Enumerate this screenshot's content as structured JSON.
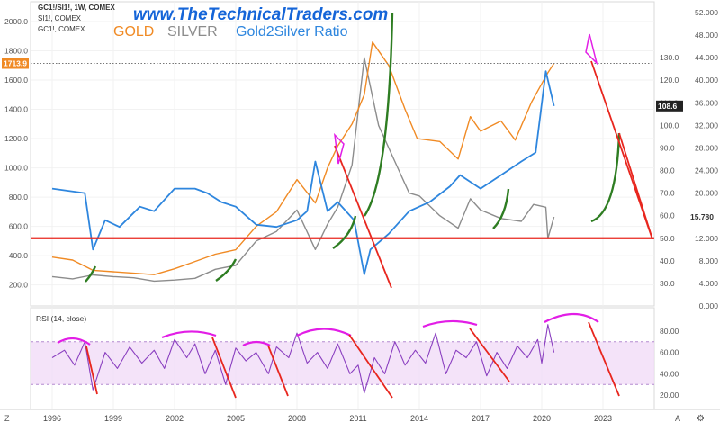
{
  "header": {
    "symbol_line": "GC1!/SI1!, 1W, COMEX",
    "line2": "SI1!, COMEX",
    "line3": "GC1!, COMEX",
    "site": "www.TheTechnicalTraders.com",
    "gold_label": "GOLD",
    "silver_label": "SILVER",
    "ratio_label": "Gold2Silver Ratio"
  },
  "colors": {
    "gold": "#f08a24",
    "silver": "#8c8c8c",
    "ratio": "#2e86de",
    "support": "#e8261e",
    "arc_green": "#2e7d22",
    "rsi": "#8a3fc0",
    "rsi_band": "#f1dcf7",
    "arc_magenta": "#e21ee6",
    "price_badge": "#f08a24",
    "ratio_badge": "#222222"
  },
  "badges": {
    "gold_price": "1713.9",
    "ratio_value": "108.6",
    "silver_value": "15.780"
  },
  "corner": {
    "left": "Z",
    "right": "A",
    "gear": "gear-icon"
  },
  "chart_data": [
    {
      "type": "line",
      "x_ticks": [
        "1996",
        "1999",
        "2002",
        "2005",
        "2008",
        "2011",
        "2014",
        "2017",
        "2020",
        "2023"
      ],
      "y_axis_gold": {
        "ticks": [
          "200.0",
          "400.0",
          "600.0",
          "800.0",
          "1000.0",
          "1200.0",
          "1400.0",
          "1600.0",
          "1800.0",
          "2000.0"
        ],
        "ylim": [
          130,
          2000
        ]
      },
      "y_axis_ratio": {
        "ticks": [
          "30.0",
          "40.0",
          "50.0",
          "60.0",
          "70.0",
          "80.0",
          "90.0",
          "100.0",
          "110.0",
          "120.0",
          "130.0"
        ]
      },
      "y_axis_silver": {
        "ticks": [
          "0.000",
          "4.000",
          "8.000",
          "12.000",
          "16.000",
          "20.000",
          "24.000",
          "28.000",
          "32.000",
          "36.000",
          "40.000",
          "44.000",
          "48.000",
          "52.000"
        ],
        "ylim": [
          0,
          52
        ]
      },
      "series": [
        {
          "name": "GOLD",
          "x": [
            1996,
            1997,
            1998,
            1999,
            2000,
            2001,
            2002,
            2003,
            2004,
            2005,
            2006,
            2007,
            2008,
            2008.9,
            2009.5,
            2010,
            2010.7,
            2011.3,
            2011.7,
            2012.5,
            2013.3,
            2013.9,
            2015,
            2015.9,
            2016.5,
            2017,
            2018,
            2018.7,
            2019.5,
            2019.9,
            2020.3,
            2020.6
          ],
          "values": [
            390,
            370,
            300,
            290,
            280,
            270,
            310,
            360,
            410,
            440,
            600,
            700,
            920,
            760,
            1000,
            1150,
            1300,
            1500,
            1860,
            1700,
            1400,
            1200,
            1180,
            1060,
            1350,
            1250,
            1320,
            1190,
            1450,
            1550,
            1650,
            1714
          ]
        },
        {
          "name": "SILVER",
          "x": [
            1996,
            1997,
            1998,
            1999,
            2000,
            2001,
            2002,
            2003,
            2004,
            2005,
            2006,
            2007,
            2008,
            2008.9,
            2009.5,
            2010,
            2010.7,
            2011.3,
            2012,
            2013,
            2013.5,
            2014,
            2015,
            2015.9,
            2016.5,
            2017,
            2018,
            2019,
            2019.6,
            2020.2,
            2020.3,
            2020.6
          ],
          "values": [
            5.2,
            4.8,
            5.5,
            5.2,
            5.0,
            4.4,
            4.6,
            4.9,
            6.5,
            7.2,
            11.5,
            13.2,
            17.0,
            10.0,
            14.5,
            17.5,
            25.0,
            44.0,
            32.0,
            24.0,
            20.0,
            19.5,
            16.0,
            13.8,
            19.0,
            17.0,
            15.5,
            15.0,
            18.0,
            17.5,
            12.0,
            15.78
          ]
        },
        {
          "name": "Gold2Silver Ratio",
          "x": [
            1996,
            1996.8,
            1997.6,
            1998,
            1998.6,
            1999.3,
            2000.3,
            2001,
            2002,
            2003,
            2003.6,
            2004.3,
            2005,
            2006,
            2007,
            2008,
            2008.5,
            2008.9,
            2009.5,
            2010,
            2010.8,
            2011.3,
            2011.6,
            2012.5,
            2013.5,
            2014.5,
            2015.5,
            2016,
            2017,
            2018,
            2019,
            2019.7,
            2020.2,
            2020.6
          ],
          "values": [
            72,
            71,
            70,
            45,
            58,
            55,
            64,
            62,
            72,
            72,
            70,
            66,
            64,
            56,
            55,
            58,
            62,
            84,
            62,
            66,
            58,
            34,
            45,
            52,
            62,
            66,
            73,
            78,
            72,
            78,
            84,
            88,
            124,
            108.6
          ]
        }
      ],
      "annotations": {
        "support_level_silver": 12.0,
        "price_marker_gold": 1713.9
      }
    },
    {
      "type": "line",
      "title": "RSI (14, close)",
      "y_ticks": [
        "20.00",
        "40.00",
        "60.00",
        "80.00"
      ],
      "ylim": [
        10,
        95
      ],
      "band": [
        30,
        70
      ],
      "series": [
        {
          "name": "RSI",
          "x": [
            1996,
            1996.6,
            1997.1,
            1997.6,
            1998,
            1998.6,
            1999.2,
            1999.8,
            2000.4,
            2001,
            2001.5,
            2002,
            2002.6,
            2003,
            2003.5,
            2004,
            2004.5,
            2005,
            2005.5,
            2006,
            2006.6,
            2007,
            2007.6,
            2008,
            2008.5,
            2009,
            2009.5,
            2010,
            2010.6,
            2011,
            2011.3,
            2011.8,
            2012.3,
            2012.8,
            2013.3,
            2013.8,
            2014.3,
            2014.8,
            2015.3,
            2015.8,
            2016.3,
            2016.8,
            2017.3,
            2017.8,
            2018.3,
            2018.8,
            2019.3,
            2019.8,
            2020,
            2020.3,
            2020.6
          ],
          "values": [
            55,
            62,
            48,
            70,
            25,
            60,
            45,
            65,
            50,
            62,
            45,
            72,
            55,
            68,
            40,
            62,
            30,
            64,
            52,
            60,
            40,
            65,
            55,
            78,
            50,
            60,
            45,
            68,
            40,
            48,
            22,
            55,
            40,
            70,
            48,
            62,
            50,
            78,
            40,
            62,
            55,
            70,
            38,
            60,
            45,
            66,
            55,
            72,
            50,
            86,
            60
          ]
        }
      ]
    }
  ]
}
